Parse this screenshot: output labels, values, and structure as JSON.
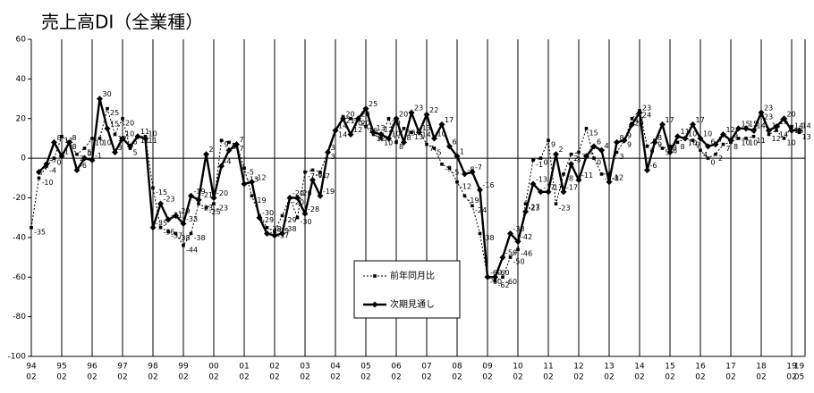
{
  "chart_data": {
    "type": "line",
    "title": "売上高DI（全業種）",
    "categories": [
      [
        "94",
        "02"
      ],
      null,
      null,
      null,
      [
        "95",
        "02"
      ],
      null,
      null,
      null,
      [
        "96",
        "02"
      ],
      null,
      null,
      null,
      [
        "97",
        "02"
      ],
      null,
      null,
      null,
      [
        "98",
        "02"
      ],
      null,
      null,
      null,
      [
        "99",
        "02"
      ],
      null,
      null,
      null,
      [
        "00",
        "02"
      ],
      null,
      null,
      null,
      [
        "01",
        "02"
      ],
      null,
      null,
      null,
      [
        "02",
        "02"
      ],
      null,
      null,
      null,
      [
        "03",
        "02"
      ],
      null,
      null,
      null,
      [
        "04",
        "02"
      ],
      null,
      null,
      null,
      [
        "05",
        "02"
      ],
      null,
      null,
      null,
      [
        "06",
        "02"
      ],
      null,
      null,
      null,
      [
        "07",
        "02"
      ],
      null,
      null,
      null,
      [
        "08",
        "02"
      ],
      null,
      null,
      null,
      [
        "09",
        "02"
      ],
      null,
      null,
      null,
      [
        "10",
        "02"
      ],
      null,
      null,
      null,
      [
        "11",
        "02"
      ],
      null,
      null,
      null,
      [
        "12",
        "02"
      ],
      null,
      null,
      null,
      [
        "13",
        "02"
      ],
      null,
      null,
      null,
      [
        "14",
        "02"
      ],
      null,
      null,
      null,
      [
        "15",
        "02"
      ],
      null,
      null,
      null,
      [
        "16",
        "02"
      ],
      null,
      null,
      null,
      [
        "17",
        "02"
      ],
      null,
      null,
      null,
      [
        "18",
        "02"
      ],
      null,
      null,
      null,
      [
        "19",
        "02"
      ],
      [
        "19",
        "05"
      ]
    ],
    "series": [
      {
        "name": "前年同月比",
        "color": "#000000",
        "values": [
          -35,
          -10,
          -4,
          0,
          11,
          8,
          2,
          5,
          10,
          10,
          25,
          12,
          20,
          5,
          11,
          11,
          -15,
          -35,
          -37,
          -38,
          -44,
          -38,
          -23,
          -25,
          -23,
          9,
          8,
          7,
          -5,
          -19,
          -29,
          -35,
          -37,
          -29,
          -20,
          -30,
          -7,
          -6,
          -7,
          3,
          14,
          21,
          20,
          20,
          16,
          12,
          10,
          20,
          8,
          15,
          13,
          14,
          7,
          5,
          -3,
          -5,
          -12,
          -19,
          -24,
          -38,
          -60,
          -62,
          -60,
          -50,
          -46,
          -23,
          -1,
          0,
          9,
          -23,
          -8,
          2,
          3,
          15,
          0,
          -8,
          -8,
          3,
          9,
          20,
          24,
          6,
          9,
          5,
          6,
          8,
          10,
          9,
          4,
          0,
          2,
          7,
          8,
          10,
          10,
          11,
          23,
          12,
          14,
          10,
          16,
          13
        ]
      },
      {
        "name": "次期見通し",
        "color": "#000000",
        "values": [
          null,
          -7,
          -3,
          8,
          1,
          8,
          -6,
          0,
          -1,
          30,
          15,
          3,
          10,
          6,
          11,
          10,
          -35,
          -23,
          -31,
          -29,
          -33,
          -19,
          -21,
          2,
          -20,
          -4,
          4,
          7,
          -13,
          -12,
          -30,
          -38,
          -39,
          -38,
          -20,
          -20,
          -28,
          -11,
          -19,
          3,
          14,
          20,
          12,
          20,
          25,
          13,
          12,
          10,
          20,
          8,
          23,
          13,
          22,
          10,
          17,
          6,
          1,
          -8,
          -7,
          -16,
          -60,
          -60,
          -50,
          -38,
          -42,
          -27,
          -13,
          -17,
          -17,
          2,
          -17,
          -3,
          -11,
          1,
          6,
          4,
          -12,
          8,
          9,
          17,
          23,
          -6,
          8,
          17,
          3,
          11,
          10,
          17,
          10,
          6,
          7,
          12,
          9,
          15,
          15,
          14,
          23,
          14,
          16,
          20,
          14,
          14
        ]
      }
    ],
    "ylim": [
      -100,
      60
    ],
    "yticks": [
      -100,
      -80,
      -60,
      -40,
      -20,
      0,
      20,
      40,
      60
    ]
  }
}
